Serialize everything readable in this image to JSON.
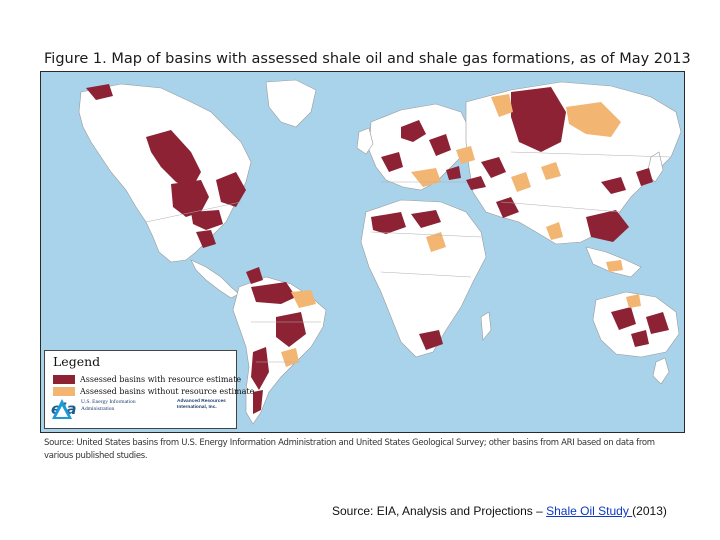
{
  "figure": {
    "title": "Figure 1. Map of basins with assessed shale oil and shale gas formations, as of May 2013"
  },
  "colors": {
    "ocean": "#a9d3ea",
    "land": "#ffffff",
    "assessed_with_estimate": "#8c2234",
    "assessed_without_estimate": "#f2b572"
  },
  "legend": {
    "title": "Legend",
    "items": [
      {
        "label": "Assessed basins with resource estimate"
      },
      {
        "label": "Assessed basins without resource estimate"
      }
    ],
    "logos": {
      "eia": {
        "mark": "eia",
        "agency_line1": "U.S. Energy Information",
        "agency_line2": "Administration"
      },
      "ari": {
        "line1": "Advanced Resources",
        "line2": "International, Inc."
      }
    }
  },
  "source_note": "Source: United States basins from U.S. Energy Information Administration and United States Geological Survey; other basins from ARI based on data from various published studies.",
  "footer": {
    "prefix": "Source:  EIA, Analysis and Projections – ",
    "link_text": "Shale Oil Study ",
    "suffix": "(2013)"
  }
}
